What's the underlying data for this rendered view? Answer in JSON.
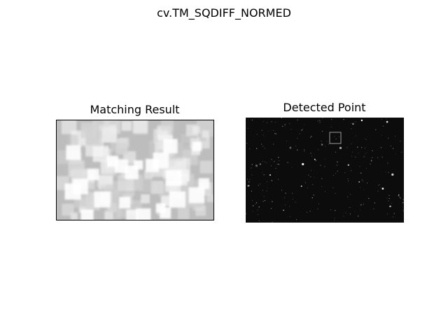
{
  "figure": {
    "suptitle": "cv.TM_SQDIFF_NORMED",
    "left_title": "Matching Result",
    "right_title": "Detected Point"
  },
  "colors": {
    "background": "#ffffff",
    "result_base": "#bdbdbd",
    "result_bright": "#ffffff",
    "image_base": "#0c0c0c",
    "detection_box": "#9a9a9a"
  },
  "detection": {
    "rectangle": "gray-outline-square"
  }
}
